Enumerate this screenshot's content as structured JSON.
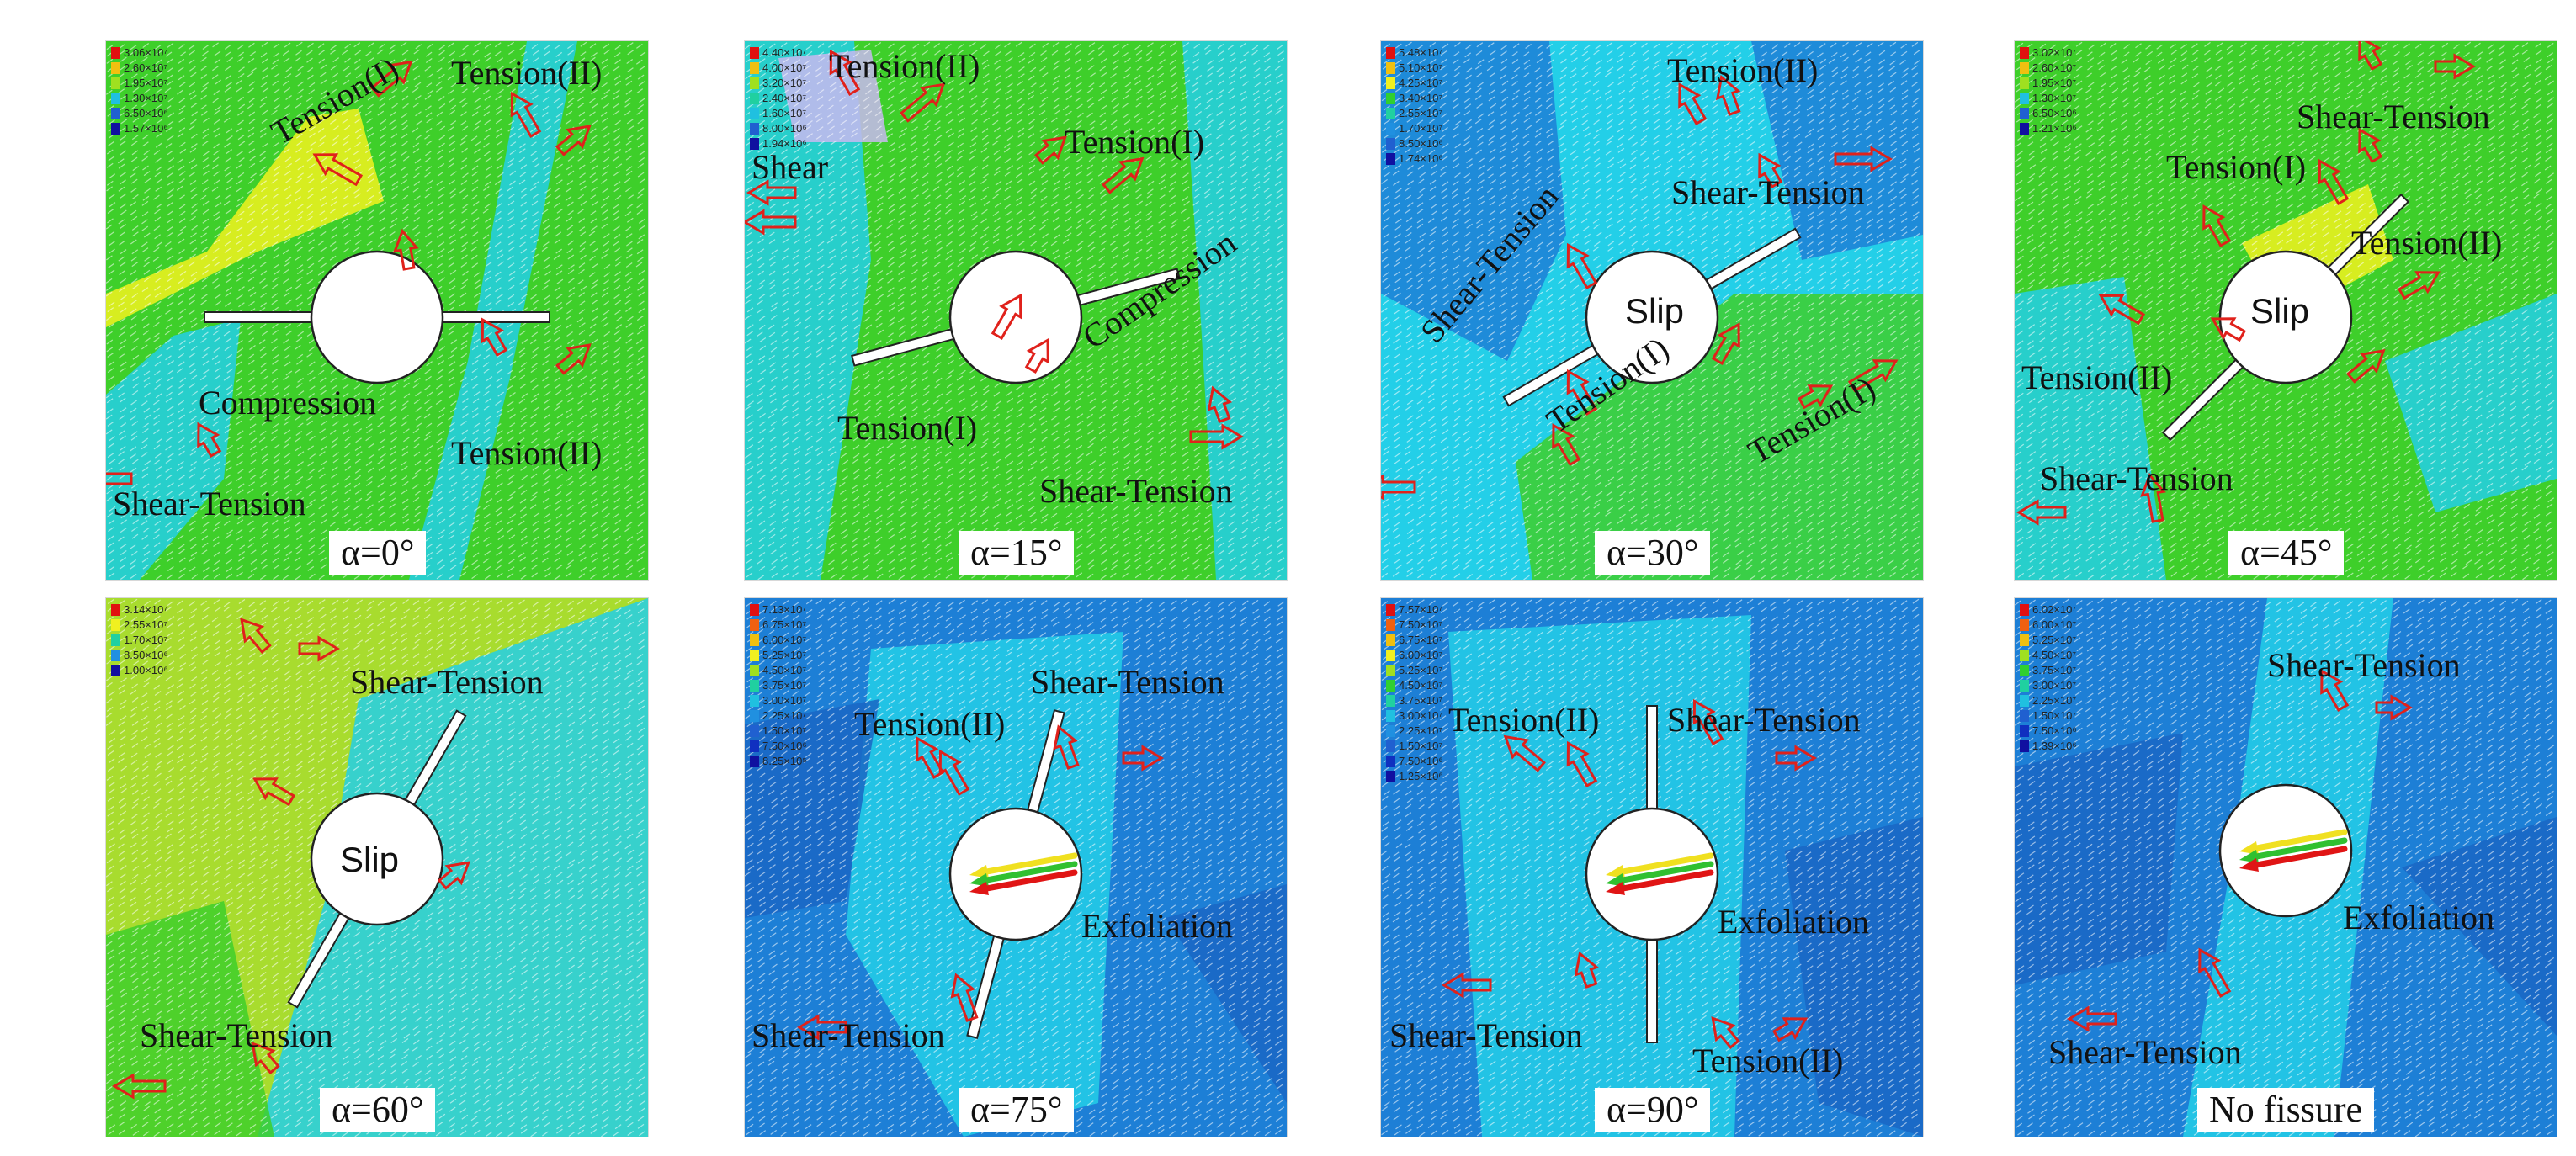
{
  "colors": {
    "green": "#3ecf2a",
    "yellow": "#f2f21e",
    "cyan": "#23cfe8",
    "blue": "#1d7fd6",
    "arrow_outline": "#e0211b",
    "displacement_red": "#e01515",
    "displacement_yellow": "#f0e020",
    "displacement_green": "#30c030"
  },
  "panels": [
    {
      "id": "p0",
      "caption": "α=0°",
      "legend": [
        "3.06×10⁷",
        "2.60×10⁷",
        "1.95×10⁷",
        "1.30×10⁷",
        "6.50×10⁶",
        "1.57×10⁶"
      ],
      "hole_label": "",
      "annotations": [
        "Tension(I)",
        "Tension(II)",
        "Compression",
        "Tension(II)",
        "Shear-Tension"
      ]
    },
    {
      "id": "p1",
      "caption": "α=15°",
      "legend": [
        "4.40×10⁷",
        "4.00×10⁷",
        "3.20×10⁷",
        "2.40×10⁷",
        "1.60×10⁷",
        "8.00×10⁶",
        "1.94×10⁶"
      ],
      "hole_label": "",
      "annotations": [
        "Tension(II)",
        "Tension(I)",
        "Shear",
        "Compression",
        "Tension(I)",
        "Shear-Tension"
      ]
    },
    {
      "id": "p2",
      "caption": "α=30°",
      "legend": [
        "5.48×10⁷",
        "5.10×10⁷",
        "4.25×10⁷",
        "3.40×10⁷",
        "2.55×10⁷",
        "1.70×10⁷",
        "8.50×10⁶",
        "1.74×10⁶"
      ],
      "hole_label": "Slip",
      "annotations": [
        "Tension(II)",
        "Shear-Tension",
        "Shear-Tension",
        "Tension(I)",
        "Tension(I)"
      ]
    },
    {
      "id": "p3",
      "caption": "α=45°",
      "legend": [
        "3.02×10⁷",
        "2.60×10⁷",
        "1.95×10⁷",
        "1.30×10⁷",
        "6.50×10⁶",
        "1.21×10⁶"
      ],
      "hole_label": "Slip",
      "annotations": [
        "Shear-Tension",
        "Tension(I)",
        "Tension(II)",
        "Tension(II)",
        "Shear-Tension"
      ]
    },
    {
      "id": "p4",
      "caption": "α=60°",
      "legend": [
        "3.14×10⁷",
        "2.55×10⁷",
        "1.70×10⁷",
        "8.50×10⁶",
        "1.00×10⁶"
      ],
      "hole_label": "Slip",
      "annotations": [
        "Shear-Tension",
        "Shear-Tension"
      ]
    },
    {
      "id": "p5",
      "caption": "α=75°",
      "legend": [
        "7.13×10⁷",
        "6.75×10⁷",
        "6.00×10⁷",
        "5.25×10⁷",
        "4.50×10⁷",
        "3.75×10⁷",
        "3.00×10⁷",
        "2.25×10⁷",
        "1.50×10⁷",
        "7.50×10⁶",
        "8.25×10⁵"
      ],
      "hole_label": "",
      "annotations": [
        "Shear-Tension",
        "Tension(II)",
        "Exfoliation",
        "Shear-Tension"
      ]
    },
    {
      "id": "p6",
      "caption": "α=90°",
      "legend": [
        "7.57×10⁷",
        "7.50×10⁷",
        "6.75×10⁷",
        "6.00×10⁷",
        "5.25×10⁷",
        "4.50×10⁷",
        "3.75×10⁷",
        "3.00×10⁷",
        "2.25×10⁷",
        "1.50×10⁷",
        "7.50×10⁶",
        "1.25×10⁶"
      ],
      "hole_label": "",
      "annotations": [
        "Tension(II)",
        "Shear-Tension",
        "Exfoliation",
        "Shear-Tension",
        "Tension(II)"
      ]
    },
    {
      "id": "p7",
      "caption": "No fissure",
      "legend": [
        "6.02×10⁷",
        "6.00×10⁷",
        "5.25×10⁷",
        "4.50×10⁷",
        "3.75×10⁷",
        "3.00×10⁷",
        "2.25×10⁷",
        "1.50×10⁷",
        "7.50×10⁶",
        "1.39×10⁶"
      ],
      "hole_label": "",
      "annotations": [
        "Shear-Tension",
        "Exfoliation",
        "Shear-Tension"
      ]
    }
  ]
}
